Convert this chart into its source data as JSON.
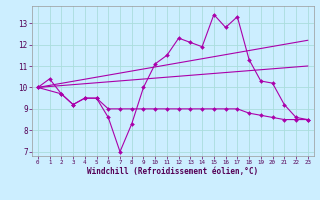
{
  "xlabel": "Windchill (Refroidissement éolien,°C)",
  "bg_color": "#cceeff",
  "grid_color": "#aadddd",
  "line_color": "#aa00aa",
  "xlim": [
    -0.5,
    23.5
  ],
  "ylim": [
    6.8,
    13.8
  ],
  "yticks": [
    7,
    8,
    9,
    10,
    11,
    12,
    13
  ],
  "xticks": [
    0,
    1,
    2,
    3,
    4,
    5,
    6,
    7,
    8,
    9,
    10,
    11,
    12,
    13,
    14,
    15,
    16,
    17,
    18,
    19,
    20,
    21,
    22,
    23
  ],
  "line1_x": [
    0,
    1,
    2,
    3,
    4,
    5,
    6,
    7,
    8,
    9,
    10,
    11,
    12,
    13,
    14,
    15,
    16,
    17,
    18,
    19,
    20,
    21,
    22,
    23
  ],
  "line1_y": [
    10.0,
    10.4,
    9.7,
    9.2,
    9.5,
    9.5,
    8.6,
    7.0,
    8.3,
    10.0,
    11.1,
    11.5,
    12.3,
    12.1,
    11.9,
    13.4,
    12.8,
    13.3,
    11.3,
    10.3,
    10.2,
    9.2,
    8.6,
    8.5
  ],
  "line2_x": [
    0,
    2,
    3,
    4,
    5,
    6,
    7,
    8,
    9,
    10,
    11,
    12,
    13,
    14,
    15,
    16,
    17,
    18,
    19,
    20,
    21,
    22,
    23
  ],
  "line2_y": [
    10.0,
    9.7,
    9.2,
    9.5,
    9.5,
    9.0,
    9.0,
    9.0,
    9.0,
    9.0,
    9.0,
    9.0,
    9.0,
    9.0,
    9.0,
    9.0,
    9.0,
    8.8,
    8.7,
    8.6,
    8.5,
    8.5,
    8.5
  ],
  "line3_x": [
    0,
    23
  ],
  "line3_y": [
    10.0,
    12.2
  ],
  "line4_x": [
    0,
    23
  ],
  "line4_y": [
    10.0,
    11.0
  ]
}
